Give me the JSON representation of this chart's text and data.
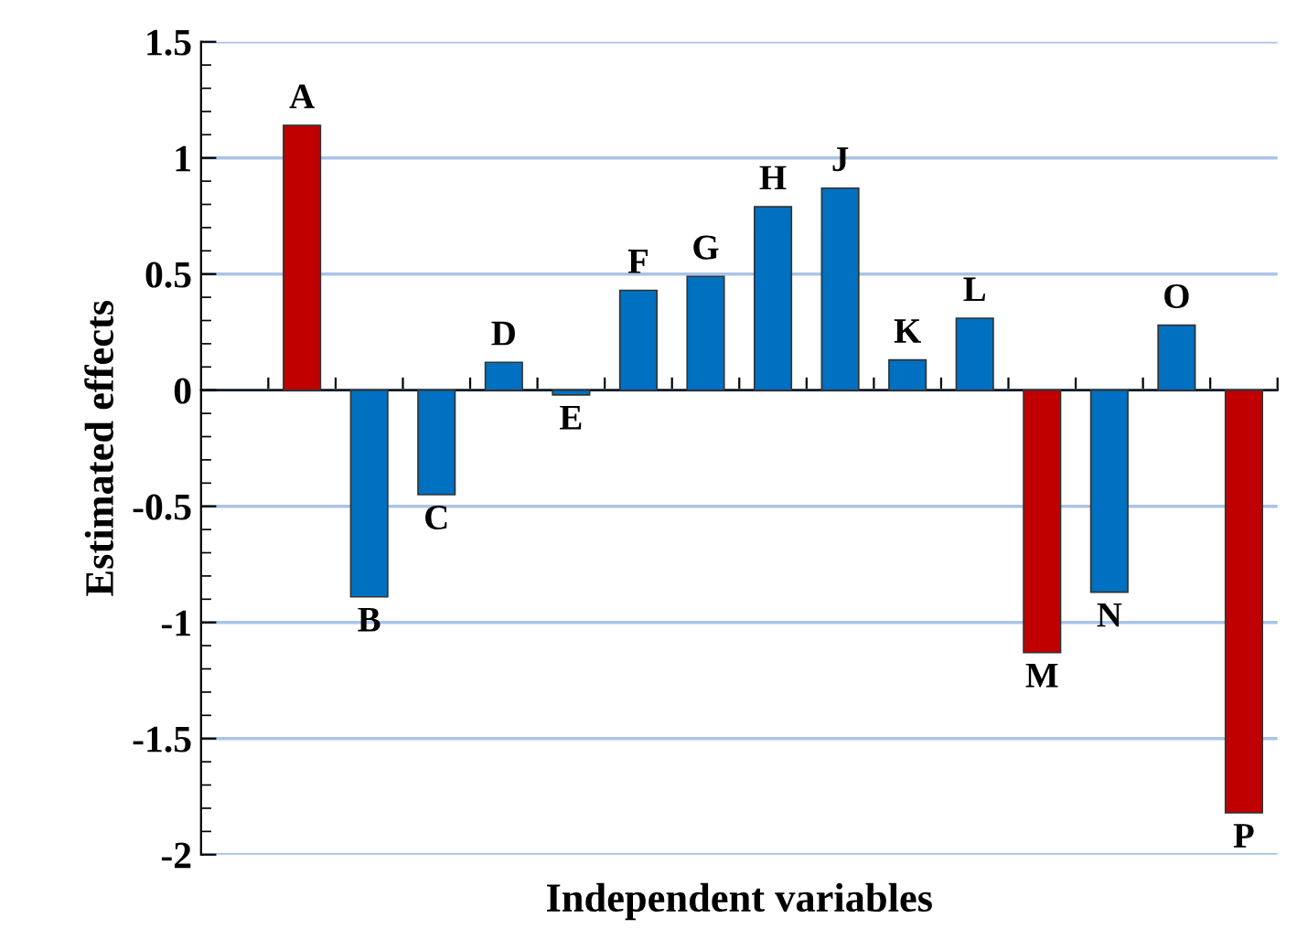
{
  "chart_data": {
    "type": "bar",
    "xlabel": "Independent variables",
    "ylabel": "Estimated effects",
    "categories": [
      "A",
      "B",
      "C",
      "D",
      "E",
      "F",
      "G",
      "H",
      "J",
      "K",
      "L",
      "M",
      "N",
      "O",
      "P"
    ],
    "values": [
      1.14,
      -0.89,
      -0.45,
      0.12,
      -0.02,
      0.43,
      0.49,
      0.79,
      0.87,
      0.13,
      0.31,
      -1.13,
      -0.87,
      0.28,
      -1.82
    ],
    "colors": [
      "#c00000",
      "#0070c0",
      "#0070c0",
      "#0070c0",
      "#0070c0",
      "#0070c0",
      "#0070c0",
      "#0070c0",
      "#0070c0",
      "#0070c0",
      "#0070c0",
      "#c00000",
      "#0070c0",
      "#0070c0",
      "#c00000"
    ],
    "ylim": [
      -2,
      1.5
    ],
    "yticks": [
      {
        "value": -2,
        "label": "-2"
      },
      {
        "value": -1.5,
        "label": "-1.5"
      },
      {
        "value": -1,
        "label": "-1"
      },
      {
        "value": -0.5,
        "label": "-0.5"
      },
      0,
      0.5,
      1,
      1.5
    ],
    "grid": "y",
    "legend": false
  }
}
